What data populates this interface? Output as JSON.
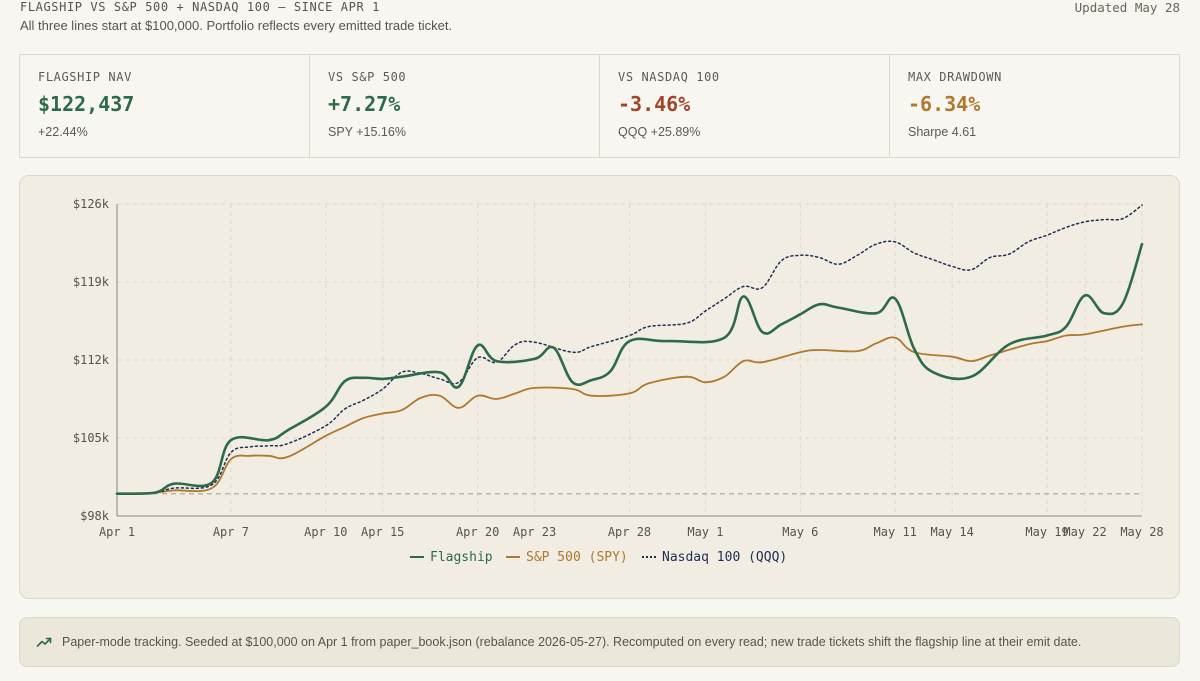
{
  "header": {
    "heading": "FLAGSHIP VS S&P 500 + NASDAQ 100 — SINCE APR 1",
    "updated": "Updated May 28",
    "subtitle": "All three lines start at $100,000. Portfolio reflects every emitted trade ticket."
  },
  "stats": [
    {
      "label": "FLAGSHIP NAV",
      "value": "$122,437",
      "sub": "+22.44%",
      "tone": "pos"
    },
    {
      "label": "VS S&P 500",
      "value": "+7.27%",
      "sub": "SPY +15.16%",
      "tone": "pos"
    },
    {
      "label": "VS NASDAQ 100",
      "value": "-3.46%",
      "sub": "QQQ +25.89%",
      "tone": "neg"
    },
    {
      "label": "MAX DRAWDOWN",
      "value": "-6.34%",
      "sub": "Sharpe 4.61",
      "tone": "amber"
    }
  ],
  "note": {
    "icon": "trending-up-icon",
    "text": "Paper-mode tracking. Seeded at $100,000 on Apr 1 from paper_book.json (rebalance 2026-05-27). Recomputed on every read; new trade tickets shift the flagship line at their emit date."
  },
  "colors": {
    "flagship": "#2d6a4a",
    "spy": "#b0782e",
    "qqq": "#1e2e52",
    "baseline": "#b9b5aa",
    "grid": "#dcd8cb"
  },
  "chart_data": {
    "type": "line",
    "title": "",
    "xlabel": "",
    "ylabel": "",
    "x_ticks": [
      "Apr 1",
      "Apr 7",
      "Apr 10",
      "Apr 15",
      "Apr 20",
      "Apr 23",
      "Apr 28",
      "May 1",
      "May 6",
      "May 11",
      "May 14",
      "May 19",
      "May 22",
      "May 28"
    ],
    "y_ticks": [
      "$98k",
      "$105k",
      "$112k",
      "$119k",
      "$126k"
    ],
    "ylim": [
      98000,
      126000
    ],
    "grid": true,
    "legend_position": "bottom-center",
    "baseline": 100000,
    "series": [
      {
        "name": "Flagship",
        "style": "solid",
        "color_key": "flagship",
        "values": [
          [
            0,
            100000
          ],
          [
            2,
            100100
          ],
          [
            3,
            100900
          ],
          [
            5,
            101000
          ],
          [
            6,
            104800
          ],
          [
            8,
            104800
          ],
          [
            9,
            105700
          ],
          [
            11,
            107800
          ],
          [
            12,
            110100
          ],
          [
            13,
            110400
          ],
          [
            14,
            110300
          ],
          [
            15,
            110500
          ],
          [
            17,
            110900
          ],
          [
            18,
            109600
          ],
          [
            19,
            113300
          ],
          [
            20,
            111900
          ],
          [
            22,
            112100
          ],
          [
            23,
            113100
          ],
          [
            24,
            110000
          ],
          [
            25,
            110200
          ],
          [
            26,
            111000
          ],
          [
            27,
            113700
          ],
          [
            29,
            113700
          ],
          [
            32,
            114000
          ],
          [
            33,
            117700
          ],
          [
            34,
            114500
          ],
          [
            35,
            115200
          ],
          [
            36,
            116100
          ],
          [
            37,
            117000
          ],
          [
            38,
            116700
          ],
          [
            40,
            116200
          ],
          [
            41,
            117500
          ],
          [
            42,
            113000
          ],
          [
            43,
            110900
          ],
          [
            45,
            110500
          ],
          [
            47,
            113400
          ],
          [
            49,
            114200
          ],
          [
            50,
            115000
          ],
          [
            51,
            117800
          ],
          [
            52,
            116200
          ],
          [
            53,
            117100
          ],
          [
            54,
            122400
          ]
        ]
      },
      {
        "name": "S&P 500 (SPY)",
        "style": "solid",
        "color_key": "spy",
        "values": [
          [
            0,
            100000
          ],
          [
            2,
            100100
          ],
          [
            3,
            100300
          ],
          [
            5,
            100500
          ],
          [
            6,
            103100
          ],
          [
            7,
            103400
          ],
          [
            8,
            103400
          ],
          [
            9,
            103300
          ],
          [
            11,
            105200
          ],
          [
            12,
            106000
          ],
          [
            13,
            106800
          ],
          [
            14,
            107200
          ],
          [
            15,
            107500
          ],
          [
            16,
            108600
          ],
          [
            17,
            108800
          ],
          [
            18,
            107700
          ],
          [
            19,
            108800
          ],
          [
            20,
            108500
          ],
          [
            21,
            109000
          ],
          [
            22,
            109500
          ],
          [
            24,
            109400
          ],
          [
            25,
            108800
          ],
          [
            27,
            109000
          ],
          [
            28,
            109900
          ],
          [
            30,
            110500
          ],
          [
            31,
            110000
          ],
          [
            32,
            110500
          ],
          [
            33,
            111900
          ],
          [
            34,
            111800
          ],
          [
            36,
            112700
          ],
          [
            37,
            112900
          ],
          [
            39,
            112800
          ],
          [
            40,
            113500
          ],
          [
            41,
            114000
          ],
          [
            42,
            112700
          ],
          [
            44,
            112300
          ],
          [
            45,
            111900
          ],
          [
            46,
            112400
          ],
          [
            48,
            113400
          ],
          [
            49,
            113700
          ],
          [
            50,
            114200
          ],
          [
            51,
            114300
          ],
          [
            53,
            115000
          ],
          [
            54,
            115200
          ]
        ]
      },
      {
        "name": "Nasdaq 100 (QQQ)",
        "style": "dotted",
        "color_key": "qqq",
        "values": [
          [
            0,
            100000
          ],
          [
            2,
            100100
          ],
          [
            3,
            100500
          ],
          [
            5,
            100800
          ],
          [
            6,
            103700
          ],
          [
            7,
            104200
          ],
          [
            8,
            104300
          ],
          [
            9,
            104500
          ],
          [
            11,
            106100
          ],
          [
            12,
            107600
          ],
          [
            13,
            108400
          ],
          [
            14,
            109400
          ],
          [
            15,
            110900
          ],
          [
            16,
            110800
          ],
          [
            17,
            110300
          ],
          [
            18,
            110000
          ],
          [
            19,
            112200
          ],
          [
            20,
            111800
          ],
          [
            21,
            113400
          ],
          [
            22,
            113600
          ],
          [
            24,
            112700
          ],
          [
            25,
            113200
          ],
          [
            27,
            114200
          ],
          [
            28,
            115000
          ],
          [
            30,
            115300
          ],
          [
            31,
            116400
          ],
          [
            32,
            117500
          ],
          [
            33,
            118600
          ],
          [
            34,
            118500
          ],
          [
            35,
            120900
          ],
          [
            36,
            121400
          ],
          [
            37,
            121200
          ],
          [
            38,
            120600
          ],
          [
            39,
            121400
          ],
          [
            40,
            122400
          ],
          [
            41,
            122600
          ],
          [
            42,
            121600
          ],
          [
            43,
            121000
          ],
          [
            44,
            120400
          ],
          [
            45,
            120100
          ],
          [
            46,
            121200
          ],
          [
            47,
            121500
          ],
          [
            48,
            122600
          ],
          [
            49,
            123200
          ],
          [
            50,
            123900
          ],
          [
            51,
            124400
          ],
          [
            52,
            124600
          ],
          [
            53,
            124700
          ],
          [
            54,
            125900
          ]
        ]
      }
    ]
  }
}
